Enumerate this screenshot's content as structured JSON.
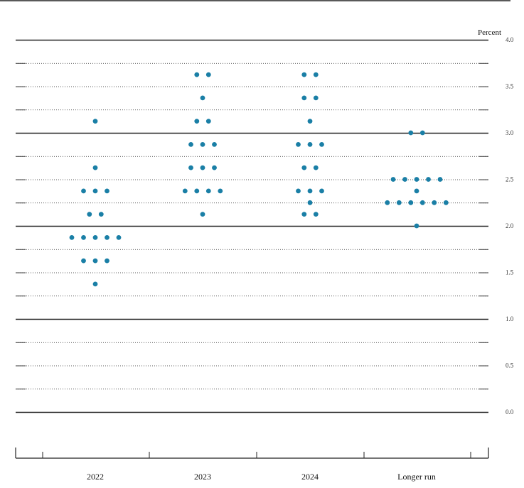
{
  "chart_data": {
    "type": "scatter",
    "title": "",
    "ylabel": "Percent",
    "ylim": [
      0.0,
      4.0
    ],
    "yticks": [
      "0.0",
      "0.5",
      "1.0",
      "1.5",
      "2.0",
      "2.5",
      "3.0",
      "3.5",
      "4.0"
    ],
    "grid": true,
    "dot_color": "#1a7fa6",
    "categories": [
      "2022",
      "2023",
      "2024",
      "Longer run"
    ],
    "points": [
      {
        "category": "2022",
        "y": 3.125,
        "count": 1
      },
      {
        "category": "2022",
        "y": 2.625,
        "count": 1
      },
      {
        "category": "2022",
        "y": 2.375,
        "count": 3
      },
      {
        "category": "2022",
        "y": 2.125,
        "count": 2
      },
      {
        "category": "2022",
        "y": 1.875,
        "count": 5
      },
      {
        "category": "2022",
        "y": 1.625,
        "count": 3
      },
      {
        "category": "2022",
        "y": 1.375,
        "count": 1
      },
      {
        "category": "2023",
        "y": 3.625,
        "count": 2
      },
      {
        "category": "2023",
        "y": 3.375,
        "count": 1
      },
      {
        "category": "2023",
        "y": 3.125,
        "count": 2
      },
      {
        "category": "2023",
        "y": 2.875,
        "count": 3
      },
      {
        "category": "2023",
        "y": 2.625,
        "count": 3
      },
      {
        "category": "2023",
        "y": 2.375,
        "count": 4
      },
      {
        "category": "2023",
        "y": 2.125,
        "count": 1
      },
      {
        "category": "2024",
        "y": 3.625,
        "count": 2
      },
      {
        "category": "2024",
        "y": 3.375,
        "count": 2
      },
      {
        "category": "2024",
        "y": 3.125,
        "count": 1
      },
      {
        "category": "2024",
        "y": 2.875,
        "count": 3
      },
      {
        "category": "2024",
        "y": 2.625,
        "count": 2
      },
      {
        "category": "2024",
        "y": 2.375,
        "count": 3
      },
      {
        "category": "2024",
        "y": 2.25,
        "count": 1
      },
      {
        "category": "2024",
        "y": 2.125,
        "count": 2
      },
      {
        "category": "Longer run",
        "y": 3.0,
        "count": 2
      },
      {
        "category": "Longer run",
        "y": 2.5,
        "count": 5
      },
      {
        "category": "Longer run",
        "y": 2.375,
        "count": 1
      },
      {
        "category": "Longer run",
        "y": 2.25,
        "count": 6
      },
      {
        "category": "Longer run",
        "y": 2.0,
        "count": 1
      }
    ]
  }
}
